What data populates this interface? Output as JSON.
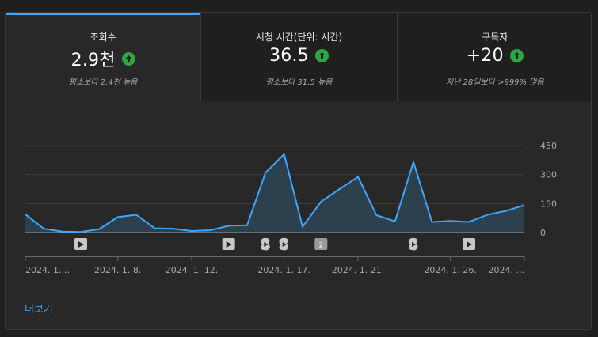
{
  "tabs": [
    {
      "label": "조회수",
      "value": "2.9천",
      "sub": "평소보다 2.4천 높음",
      "active": true
    },
    {
      "label": "시청 시간(단위: 시간)",
      "value": "36.5",
      "sub": "평소보다 31.5 높음",
      "active": false
    },
    {
      "label": "구독자",
      "value": "+20",
      "sub": "지난 28일보다 >999% 많음",
      "active": false
    }
  ],
  "chart_data": {
    "type": "area",
    "y_ticks": [
      0,
      150,
      300,
      450
    ],
    "ylim": [
      0,
      450
    ],
    "values": [
      95,
      20,
      5,
      3,
      18,
      80,
      92,
      22,
      20,
      8,
      12,
      35,
      38,
      310,
      405,
      30,
      160,
      225,
      288,
      90,
      58,
      365,
      55,
      60,
      55,
      92,
      112,
      142
    ],
    "x_tick_indices": [
      0,
      5,
      9,
      14,
      18,
      23,
      27
    ],
    "x_labels": [
      "2024. 1....",
      "2024. 1. 8.",
      "2024. 1. 12.",
      "2024. 1. 17.",
      "2024. 1. 21.",
      "2024. 1. 26.",
      "2024. ..."
    ],
    "markers": [
      {
        "index": 3,
        "type": "video",
        "label": ""
      },
      {
        "index": 11,
        "type": "video",
        "label": ""
      },
      {
        "index": 13,
        "type": "shorts",
        "label": ""
      },
      {
        "index": 14,
        "type": "shorts",
        "label": ""
      },
      {
        "index": 16,
        "type": "count",
        "label": "2"
      },
      {
        "index": 21,
        "type": "shorts",
        "label": ""
      },
      {
        "index": 24,
        "type": "video",
        "label": ""
      }
    ],
    "colors": {
      "line": "#3ea6ff",
      "fill": "#2e4352",
      "grid": "#3d3d3d",
      "axis": "#9e9e9e",
      "text": "#aaaaaa",
      "marker": "#c8c8c8"
    }
  },
  "more_link": "더보기"
}
